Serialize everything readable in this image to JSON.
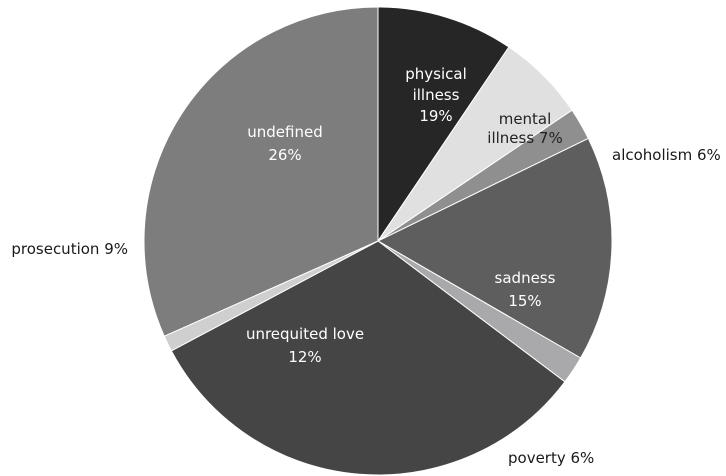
{
  "chart_data": {
    "type": "pie",
    "title": "",
    "slices": [
      {
        "key": "physical-illness",
        "label_lines": [
          "physical",
          "illness",
          "19%"
        ],
        "value": 19,
        "color": "#262626",
        "label_style": "inside"
      },
      {
        "key": "mental-illness",
        "label_lines": [
          "mental",
          "illness 7%"
        ],
        "value": 7,
        "color": "#e0e0e0",
        "label_style": "inside-dark"
      },
      {
        "key": "alcoholism",
        "label_lines": [
          "alcoholism 6%"
        ],
        "value": 6,
        "color": "#8f8f8f",
        "label_style": "outside"
      },
      {
        "key": "sadness",
        "label_lines": [
          "sadness",
          "15%"
        ],
        "value": 15,
        "color": "#5e5e5f",
        "label_style": "inside"
      },
      {
        "key": "poverty",
        "label_lines": [
          "poverty 6%"
        ],
        "value": 6,
        "color": "#a9a9ab",
        "label_style": "outside"
      },
      {
        "key": "unrequited-love",
        "label_lines": [
          "unrequited love",
          "12%"
        ],
        "value": 12,
        "color": "#454546",
        "label_style": "inside"
      },
      {
        "key": "prosecution",
        "label_lines": [
          "prosecution 9%"
        ],
        "value": 9,
        "color": "#cfcfd0",
        "label_style": "outside"
      },
      {
        "key": "undefined",
        "label_lines": [
          "undefined",
          "26%"
        ],
        "value": 26,
        "color": "#7d7d7e",
        "label_style": "inside"
      }
    ]
  }
}
